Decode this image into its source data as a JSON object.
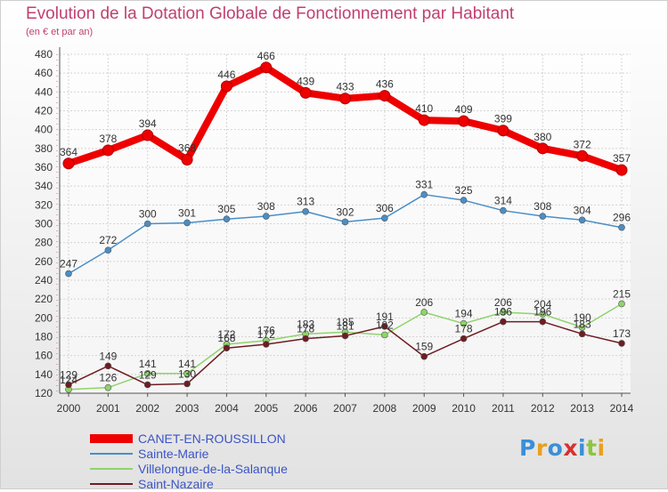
{
  "header": {
    "title": "Evolution de la Dotation Globale de Fonctionnement par Habitant",
    "subtitle": "(en € et par an)"
  },
  "logo": {
    "text": "Proxiti",
    "colors": [
      "#3a8fd8",
      "#e8a020",
      "#3a8fd8",
      "#d83030",
      "#3a8fd8",
      "#8cc63f",
      "#e8a020"
    ]
  },
  "chart_data": {
    "type": "line",
    "title": "Evolution de la Dotation Globale de Fonctionnement par Habitant",
    "subtitle": "(en € et par an)",
    "xlabel": "",
    "ylabel": "",
    "x": [
      "2000",
      "2001",
      "2002",
      "2003",
      "2004",
      "2005",
      "2006",
      "2007",
      "2008",
      "2009",
      "2010",
      "2011",
      "2012",
      "2013",
      "2014"
    ],
    "ylim": [
      120,
      480
    ],
    "yticks": [
      120,
      140,
      160,
      180,
      200,
      220,
      240,
      260,
      280,
      300,
      320,
      340,
      360,
      380,
      400,
      420,
      440,
      460,
      480
    ],
    "grid": true,
    "legend_position": "bottom-left",
    "series": [
      {
        "name": "CANET-EN-ROUSSILLON",
        "color": "#ee0000",
        "values": [
          364,
          378,
          394,
          368,
          446,
          466,
          439,
          433,
          436,
          410,
          409,
          399,
          380,
          372,
          357
        ],
        "labels": [
          "364",
          "378",
          "394",
          "368",
          "446",
          "466",
          "439",
          "433",
          "436",
          "410",
          "409",
          "399",
          "380",
          "372",
          "357"
        ]
      },
      {
        "name": "Sainte-Marie",
        "color": "#4a8ec6",
        "values": [
          247,
          272,
          300,
          301,
          305,
          308,
          313,
          302,
          306,
          331,
          325,
          314,
          308,
          304,
          296
        ],
        "labels": [
          "247",
          "272",
          "300",
          "301",
          "305",
          "308",
          "313",
          "302",
          "306",
          "331",
          "325",
          "314",
          "308",
          "304",
          "296"
        ]
      },
      {
        "name": "Villelongue-de-la-Salanque",
        "color": "#8ed46a",
        "values": [
          124,
          126,
          141,
          141,
          172,
          176,
          183,
          185,
          182,
          206,
          194,
          206,
          204,
          190,
          215
        ],
        "labels": [
          "124",
          "126",
          "141",
          "141",
          "172",
          "176",
          "183",
          "185",
          "182",
          "206",
          "194",
          "206",
          "204",
          "190",
          "215"
        ]
      },
      {
        "name": "Saint-Nazaire",
        "color": "#6e1c22",
        "values": [
          129,
          149,
          129,
          130,
          168,
          172,
          178,
          181,
          191,
          159,
          178,
          196,
          196,
          183,
          173
        ],
        "labels": [
          "129",
          "149",
          "129",
          "130",
          "168",
          "172",
          "178",
          "181",
          "191",
          "159",
          "178",
          "196",
          "196",
          "183",
          "173"
        ]
      }
    ]
  }
}
